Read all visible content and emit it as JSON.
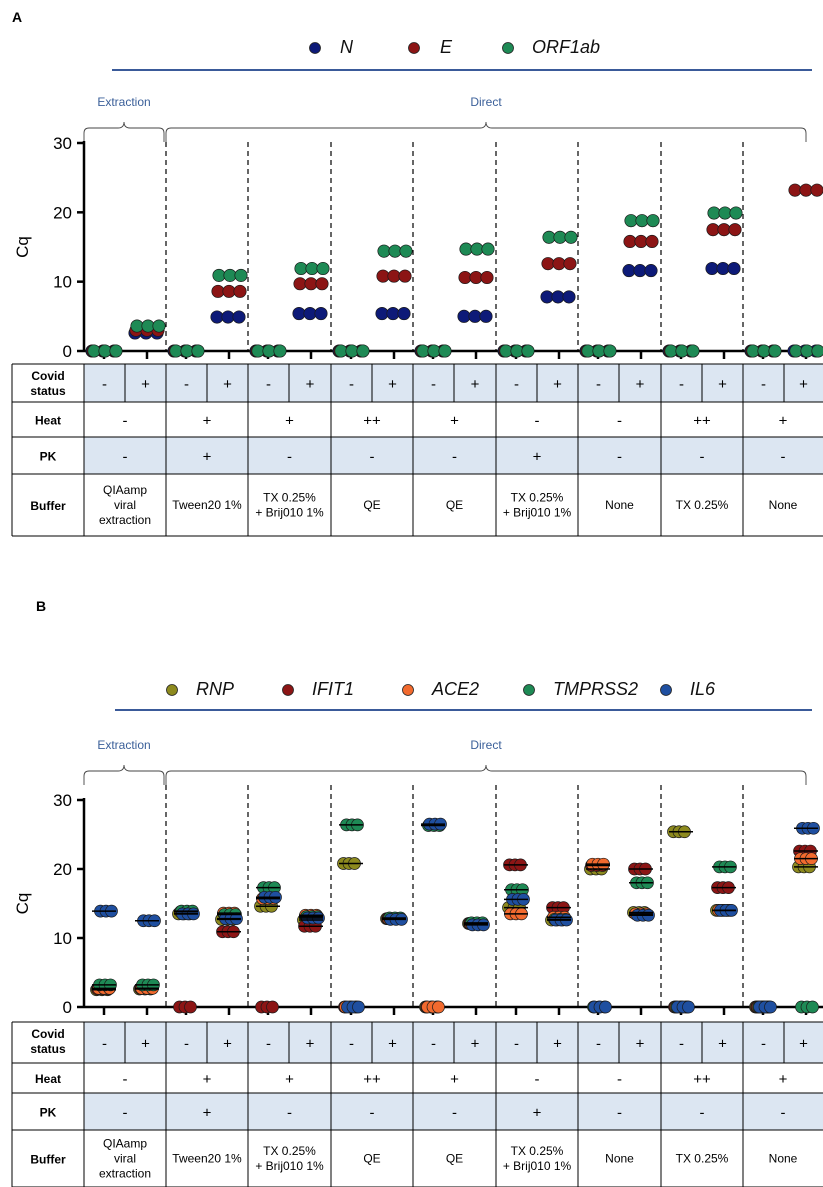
{
  "panel_a_label": "A",
  "panel_b_label": "B",
  "group_labels": {
    "extraction": "Extraction",
    "direct": "Direct"
  },
  "colors": {
    "N": "#0d1a78",
    "E": "#8c1515",
    "ORF1ab": "#1e8a55",
    "RNP": "#8d8a1e",
    "IFIT1": "#8c1515",
    "ACE2": "#f26a2e",
    "TMPRSS2": "#1e8a55",
    "IL6": "#1f4fa0",
    "table_band": "#dce6f2",
    "bracket_text": "#3a5f99",
    "legend_line": "#3a5a99"
  },
  "table": {
    "row_labels": {
      "covid": [
        "Covid",
        "status"
      ],
      "heat": "Heat",
      "pk": "PK",
      "buffer": "Buffer"
    },
    "covid": [
      "-",
      "+"
    ],
    "heat": [
      "-",
      "+",
      "+",
      "++",
      "+",
      "-",
      "-",
      "++",
      "+"
    ],
    "pk": [
      "-",
      "+",
      "-",
      "-",
      "-",
      "+",
      "-",
      "-",
      "-"
    ],
    "buffer": [
      [
        "QIAamp",
        "viral",
        "extraction"
      ],
      [
        "Tween20 1%"
      ],
      [
        "TX 0.25%",
        "+ Brij010 1%"
      ],
      [
        "QE"
      ],
      [
        "QE"
      ],
      [
        "TX 0.25%",
        "+ Brij010 1%"
      ],
      [
        "None"
      ],
      [
        "TX 0.25%"
      ],
      [
        "None"
      ]
    ]
  },
  "chart_data": [
    {
      "type": "scatter",
      "panel": "A",
      "ylabel": "Cq",
      "ylim": [
        0,
        30
      ],
      "yticks": [
        0,
        10,
        20,
        30
      ],
      "legend_placement": "top-center",
      "categories": [
        "QIAamp viral extraction -",
        "QIAamp viral extraction +",
        "Tween20 1% -",
        "Tween20 1% +",
        "TX 0.25% + Brij010 1% -",
        "TX 0.25% + Brij010 1% +",
        "QE (++) -",
        "QE (++) +",
        "QE (+) -",
        "QE (+) +",
        "TX 0.25% + Brij010 1% (PK) -",
        "TX 0.25% + Brij010 1% (PK) +",
        "None (-) -",
        "None (-) +",
        "TX 0.25% (++) -",
        "TX 0.25% (++) +",
        "None (+) -",
        "None (+) +"
      ],
      "series": [
        {
          "name": "N",
          "values": [
            0,
            2.6,
            0,
            4.9,
            0,
            5.4,
            0,
            5.4,
            0,
            5.0,
            0,
            7.8,
            0,
            11.6,
            0,
            11.9,
            0,
            0
          ]
        },
        {
          "name": "E",
          "values": [
            0,
            3.0,
            0,
            8.6,
            0,
            9.7,
            0,
            10.8,
            0,
            10.6,
            0,
            12.6,
            0,
            15.8,
            0,
            17.5,
            0,
            23.2
          ]
        },
        {
          "name": "ORF1ab",
          "values": [
            0,
            3.6,
            0,
            10.9,
            0,
            11.9,
            0,
            14.4,
            0,
            14.7,
            0,
            16.4,
            0,
            18.8,
            0,
            19.9,
            0,
            0
          ]
        }
      ]
    },
    {
      "type": "scatter",
      "panel": "B",
      "ylabel": "Cq",
      "ylim": [
        0,
        30
      ],
      "yticks": [
        0,
        10,
        20,
        30
      ],
      "legend_placement": "top-center",
      "categories": [
        "QIAamp viral extraction -",
        "QIAamp viral extraction +",
        "Tween20 1% -",
        "Tween20 1% +",
        "TX 0.25% + Brij010 1% -",
        "TX 0.25% + Brij010 1% +",
        "QE (++) -",
        "QE (++) +",
        "QE (+) -",
        "QE (+) +",
        "TX 0.25% + Brij010 1% (PK) -",
        "TX 0.25% + Brij010 1% (PK) +",
        "None (-) -",
        "None (-) +",
        "TX 0.25% (++) -",
        "TX 0.25% (++) +",
        "None (+) -",
        "None (+) +"
      ],
      "series": [
        {
          "name": "RNP",
          "values": [
            2.5,
            2.6,
            13.5,
            12.7,
            14.6,
            12.6,
            20.8,
            12.8,
            0,
            12.1,
            14.4,
            12.6,
            20.0,
            13.7,
            25.4,
            14.0,
            0,
            20.3
          ]
        },
        {
          "name": "IFIT1",
          "values": [
            2.6,
            2.7,
            0,
            10.9,
            0,
            11.7,
            0,
            12.8,
            0,
            12.1,
            20.6,
            14.4,
            20.5,
            20.0,
            0,
            17.3,
            0,
            22.6
          ]
        },
        {
          "name": "ACE2",
          "values": [
            2.7,
            2.7,
            13.8,
            13.6,
            15.7,
            13.3,
            0,
            12.8,
            0,
            12.1,
            13.5,
            13.0,
            20.7,
            13.5,
            0,
            14.0,
            0,
            21.5
          ]
        },
        {
          "name": "TMPRSS2",
          "values": [
            3.2,
            3.2,
            13.9,
            13.4,
            17.3,
            13.1,
            26.4,
            12.9,
            26.3,
            12.2,
            17.0,
            12.7,
            0,
            18.0,
            0,
            20.3,
            0,
            0
          ]
        },
        {
          "name": "IL6",
          "values": [
            13.9,
            12.5,
            13.5,
            12.8,
            15.9,
            12.9,
            0,
            12.7,
            26.5,
            11.9,
            15.6,
            12.6,
            0,
            13.3,
            0,
            14.0,
            0,
            25.9
          ]
        }
      ]
    }
  ]
}
